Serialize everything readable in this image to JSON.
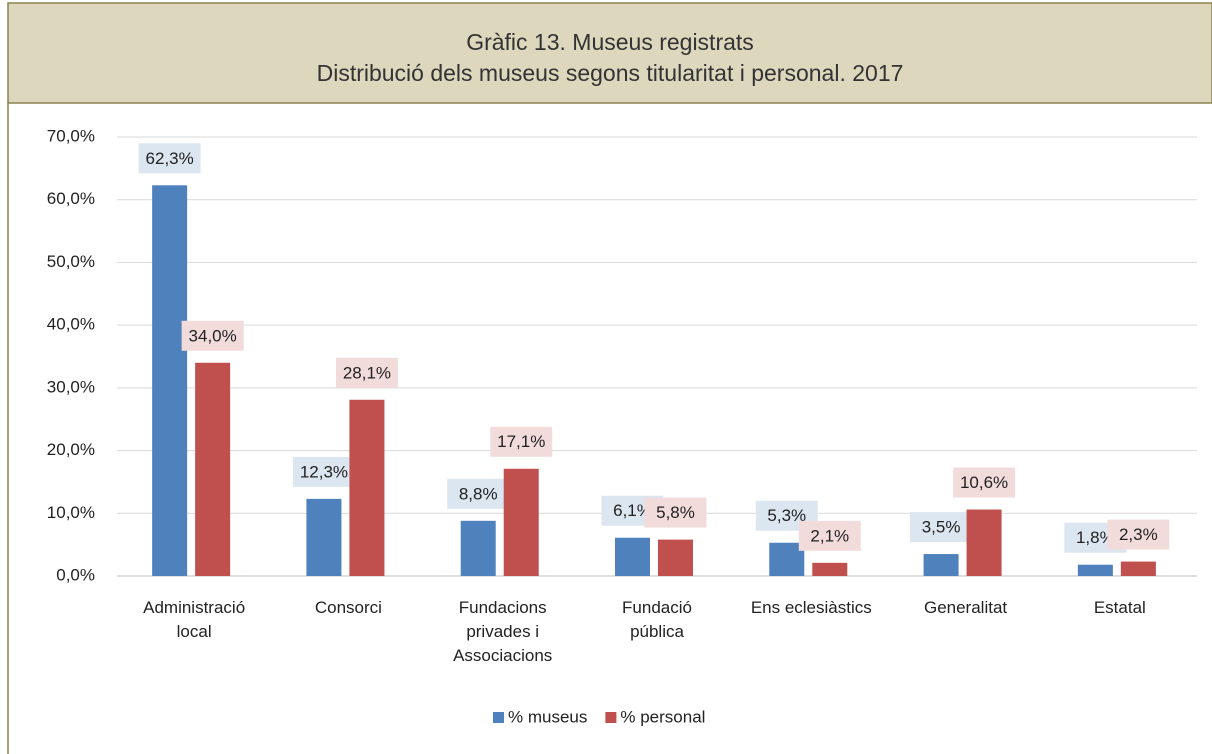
{
  "chart_data": {
    "type": "bar",
    "title": "Gràfic 13. Museus registrats",
    "subtitle": "Distribució dels museus segons titularitat i personal. 2017",
    "categories": [
      "Administració local",
      "Consorci",
      "Fundacions privades i Associacions",
      "Fundació pública",
      "Ens eclesiàstics",
      "Generalitat",
      "Estatal"
    ],
    "series": [
      {
        "name": "% museus",
        "color": "#4f81bd",
        "values": [
          62.3,
          12.3,
          8.8,
          6.1,
          5.3,
          3.5,
          1.8
        ],
        "value_labels": [
          "62,3%",
          "12,3%",
          "8,8%",
          "6,1%",
          "5,3%",
          "3,5%",
          "1,8%"
        ]
      },
      {
        "name": "% personal",
        "color": "#c0504d",
        "values": [
          34.0,
          28.1,
          17.1,
          5.8,
          2.1,
          10.6,
          2.3
        ],
        "value_labels": [
          "34,0%",
          "28,1%",
          "17,1%",
          "5,8%",
          "2,1%",
          "10,6%",
          "2,3%"
        ]
      }
    ],
    "ylim": [
      0,
      70
    ],
    "yticks": [
      {
        "value": 0,
        "label": "0,0%"
      },
      {
        "value": 10,
        "label": "10,0%"
      },
      {
        "value": 20,
        "label": "20,0%"
      },
      {
        "value": 30,
        "label": "30,0%"
      },
      {
        "value": 40,
        "label": "40,0%"
      },
      {
        "value": 50,
        "label": "50,0%"
      },
      {
        "value": 60,
        "label": "60,0%"
      },
      {
        "value": 70,
        "label": "70,0%"
      }
    ],
    "grid": true,
    "legend": "bottom"
  }
}
